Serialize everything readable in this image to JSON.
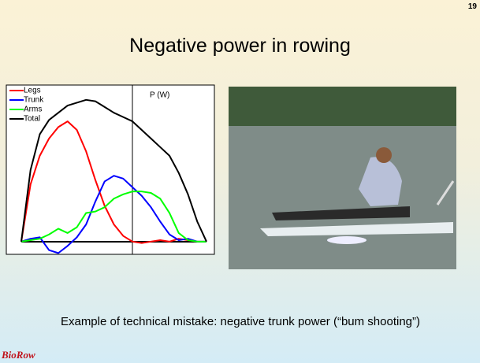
{
  "slide_number": "19",
  "title": "Negative power in rowing",
  "caption": "Example of technical mistake: negative trunk power (“bum shooting”)",
  "logo": "BioRow",
  "chart_data": {
    "type": "line",
    "y_label": "P (W)",
    "x": [
      0,
      1,
      2,
      3,
      4,
      5,
      6,
      7,
      8,
      9,
      10,
      11,
      12,
      13,
      14,
      15,
      16,
      17,
      18,
      19,
      20
    ],
    "xlim": [
      0,
      20
    ],
    "ylim": [
      -10,
      100
    ],
    "series": [
      {
        "name": "Legs",
        "color": "#ff0000",
        "values": [
          0,
          40,
          60,
          72,
          80,
          84,
          78,
          63,
          43,
          25,
          12,
          4,
          0,
          -1,
          0,
          1,
          0,
          2,
          1,
          0,
          0
        ]
      },
      {
        "name": "Trunk",
        "color": "#0000ff",
        "values": [
          0,
          2,
          3,
          -6,
          -8,
          -3,
          3,
          12,
          28,
          42,
          46,
          44,
          38,
          32,
          24,
          14,
          5,
          1,
          2,
          0,
          0
        ]
      },
      {
        "name": "Arms",
        "color": "#00ff00",
        "values": [
          0,
          1,
          2,
          5,
          9,
          6,
          10,
          20,
          21,
          24,
          30,
          33,
          35,
          35,
          34,
          30,
          20,
          6,
          1,
          0,
          0
        ]
      },
      {
        "name": "Total",
        "color": "#000000",
        "values": [
          0,
          50,
          75,
          85,
          90,
          95,
          97,
          99,
          98,
          94,
          90,
          87,
          84,
          78,
          72,
          66,
          60,
          48,
          33,
          14,
          0
        ]
      }
    ]
  }
}
